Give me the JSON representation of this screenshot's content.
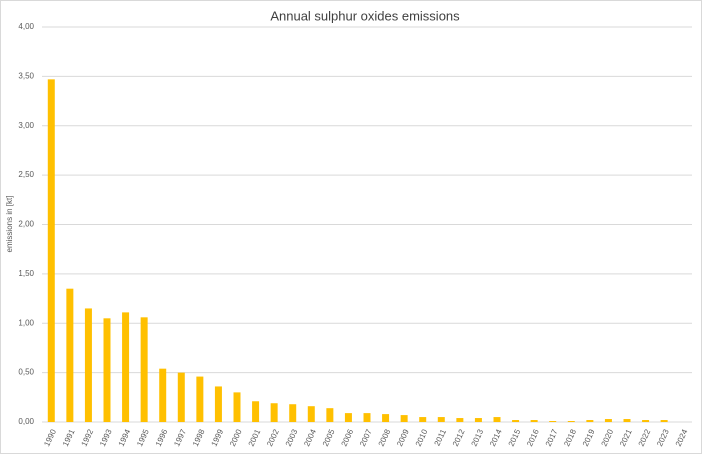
{
  "chart_data": {
    "type": "bar",
    "title": "Annual sulphur oxides emissions",
    "y_label": "emissions in [kt]",
    "categories": [
      "1990",
      "1991",
      "1992",
      "1993",
      "1994",
      "1995",
      "1996",
      "1997",
      "1998",
      "1999",
      "2000",
      "2001",
      "2002",
      "2003",
      "2004",
      "2005",
      "2006",
      "2007",
      "2008",
      "2009",
      "2010",
      "2011",
      "2012",
      "2013",
      "2014",
      "2015",
      "2016",
      "2017",
      "2018",
      "2019",
      "2020",
      "2021",
      "2022",
      "2023",
      "2024"
    ],
    "values": [
      3.47,
      1.35,
      1.15,
      1.05,
      1.11,
      1.06,
      0.54,
      0.5,
      0.46,
      0.36,
      0.3,
      0.21,
      0.19,
      0.18,
      0.16,
      0.14,
      0.09,
      0.09,
      0.08,
      0.07,
      0.05,
      0.05,
      0.04,
      0.04,
      0.05,
      0.02,
      0.02,
      0.01,
      0.01,
      0.02,
      0.03,
      0.03,
      0.02,
      0.02,
      null
    ],
    "color": "#ffc000",
    "ylim": [
      0,
      4
    ],
    "yticks": [
      {
        "value": 0,
        "label": "0,00"
      },
      {
        "value": 0.5,
        "label": "0,50"
      },
      {
        "value": 1,
        "label": "1,00"
      },
      {
        "value": 1.5,
        "label": "1,50"
      },
      {
        "value": 2,
        "label": "2,00"
      },
      {
        "value": 2.5,
        "label": "2,50"
      },
      {
        "value": 3,
        "label": "3,00"
      },
      {
        "value": 3.5,
        "label": "3,50"
      },
      {
        "value": 4,
        "label": "4,00"
      }
    ],
    "grid": true
  }
}
